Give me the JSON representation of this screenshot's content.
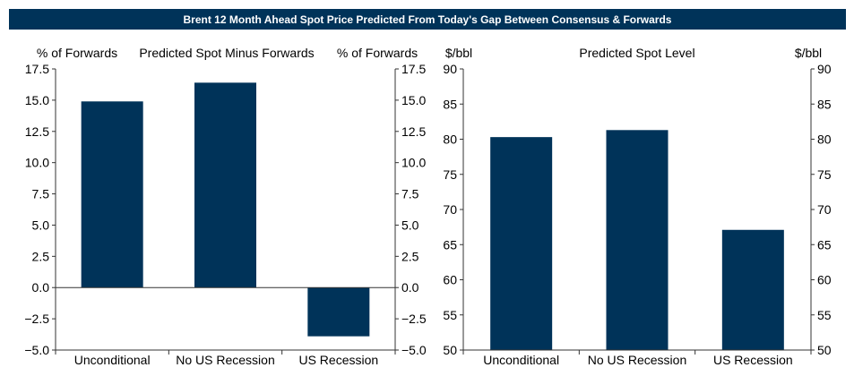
{
  "banner": {
    "title": "Brent 12 Month Ahead Spot Price Predicted From Today's Gap Between Consensus & Forwards"
  },
  "chart_data": [
    {
      "type": "bar",
      "title": "Predicted Spot Minus Forwards",
      "ylabel_left": "% of Forwards",
      "ylabel_right": "% of Forwards",
      "categories": [
        "Unconditional",
        "No US Recession",
        "US Recession"
      ],
      "values": [
        14.9,
        16.4,
        -3.9
      ],
      "ylim": [
        -5.0,
        17.5
      ],
      "yticks": [
        17.5,
        15.0,
        12.5,
        10.0,
        7.5,
        5.0,
        2.5,
        0.0,
        -2.5,
        -5.0
      ],
      "ytick_labels": [
        "17.5",
        "15.0",
        "12.5",
        "10.0",
        "7.5",
        "5.0",
        "2.5",
        "0.0",
        "−2.5",
        "−5.0"
      ],
      "bar_color": "#003359"
    },
    {
      "type": "bar",
      "title": "Predicted Spot Level",
      "ylabel_left": "$/bbl",
      "ylabel_right": "$/bbl",
      "categories": [
        "Unconditional",
        "No US Recession",
        "US Recession"
      ],
      "values": [
        80.3,
        81.3,
        67.1
      ],
      "ylim": [
        50,
        90
      ],
      "yticks": [
        90,
        85,
        80,
        75,
        70,
        65,
        60,
        55,
        50
      ],
      "ytick_labels": [
        "90",
        "85",
        "80",
        "75",
        "70",
        "65",
        "60",
        "55",
        "50"
      ],
      "bar_color": "#003359"
    }
  ]
}
